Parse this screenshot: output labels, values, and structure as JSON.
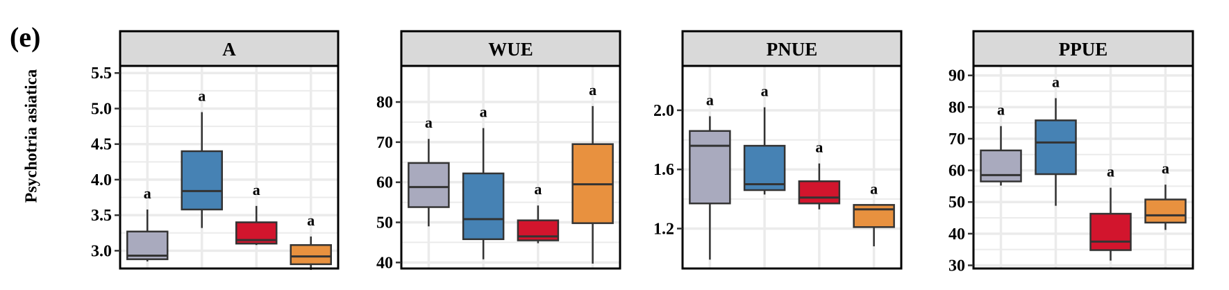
{
  "figure": {
    "panel_label": "(e)",
    "row_label": "Psychotria asiatica"
  },
  "colors": {
    "grey": "#A9AABE",
    "blue": "#4682B4",
    "red": "#D2152D",
    "orange": "#E8913F",
    "strip": "#D9D9D9",
    "grid": "#EBEBEB"
  },
  "chart_data": [
    {
      "type": "box",
      "title": "A",
      "ylim": [
        2.75,
        5.6
      ],
      "yticks": [
        "3.0",
        "3.5",
        "4.0",
        "4.5",
        "5.0",
        "5.5"
      ],
      "groups": [
        {
          "color": "grey",
          "min": 2.85,
          "q1": 2.88,
          "median": 2.93,
          "q3": 3.27,
          "max": 3.58,
          "letter": "a"
        },
        {
          "color": "blue",
          "min": 3.32,
          "q1": 3.58,
          "median": 3.84,
          "q3": 4.4,
          "max": 4.95,
          "letter": "a"
        },
        {
          "color": "red",
          "min": 3.08,
          "q1": 3.1,
          "median": 3.15,
          "q3": 3.4,
          "max": 3.63,
          "letter": "a"
        },
        {
          "color": "orange",
          "min": 2.73,
          "q1": 2.81,
          "median": 2.92,
          "q3": 3.08,
          "max": 3.2,
          "letter": "a"
        }
      ]
    },
    {
      "type": "box",
      "title": "WUE",
      "ylim": [
        38.5,
        89
      ],
      "yticks": [
        "40",
        "50",
        "60",
        "70",
        "80"
      ],
      "groups": [
        {
          "color": "grey",
          "min": 49.0,
          "q1": 53.8,
          "median": 58.8,
          "q3": 64.8,
          "max": 70.8,
          "letter": "a"
        },
        {
          "color": "blue",
          "min": 40.8,
          "q1": 45.8,
          "median": 50.8,
          "q3": 62.2,
          "max": 73.5,
          "letter": "a"
        },
        {
          "color": "red",
          "min": 44.8,
          "q1": 45.5,
          "median": 46.5,
          "q3": 50.5,
          "max": 54.2,
          "letter": "a"
        },
        {
          "color": "orange",
          "min": 39.7,
          "q1": 49.8,
          "median": 59.5,
          "q3": 69.5,
          "max": 79.0,
          "letter": "a"
        }
      ]
    },
    {
      "type": "box",
      "title": "PNUE",
      "ylim": [
        0.93,
        2.3
      ],
      "yticks": [
        "1.2",
        "1.6",
        "2.0"
      ],
      "groups": [
        {
          "color": "grey",
          "min": 0.99,
          "q1": 1.37,
          "median": 1.76,
          "q3": 1.86,
          "max": 1.96,
          "letter": "a"
        },
        {
          "color": "blue",
          "min": 1.43,
          "q1": 1.46,
          "median": 1.5,
          "q3": 1.76,
          "max": 2.02,
          "letter": "a"
        },
        {
          "color": "red",
          "min": 1.33,
          "q1": 1.37,
          "median": 1.41,
          "q3": 1.52,
          "max": 1.64,
          "letter": "a"
        },
        {
          "color": "orange",
          "min": 1.08,
          "q1": 1.21,
          "median": 1.33,
          "q3": 1.36,
          "max": 1.36,
          "letter": "a"
        }
      ]
    },
    {
      "type": "box",
      "title": "PPUE",
      "ylim": [
        29,
        93
      ],
      "yticks": [
        "30",
        "40",
        "50",
        "60",
        "70",
        "80",
        "90"
      ],
      "groups": [
        {
          "color": "grey",
          "min": 55.2,
          "q1": 56.5,
          "median": 58.5,
          "q3": 66.3,
          "max": 74.0,
          "letter": "a"
        },
        {
          "color": "blue",
          "min": 48.8,
          "q1": 58.8,
          "median": 68.8,
          "q3": 75.8,
          "max": 82.8,
          "letter": "a"
        },
        {
          "color": "red",
          "min": 31.5,
          "q1": 34.8,
          "median": 37.5,
          "q3": 46.3,
          "max": 54.5,
          "letter": "a"
        },
        {
          "color": "orange",
          "min": 41.2,
          "q1": 43.5,
          "median": 45.8,
          "q3": 50.8,
          "max": 55.5,
          "letter": "a"
        }
      ]
    }
  ]
}
